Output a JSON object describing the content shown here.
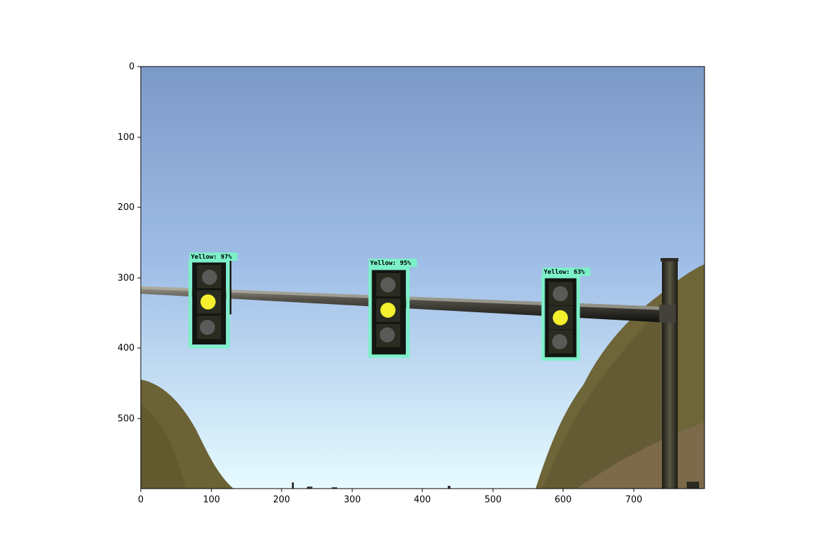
{
  "figure": {
    "x_ticks": [
      "0",
      "100",
      "200",
      "300",
      "400",
      "500",
      "600",
      "700"
    ],
    "y_ticks": [
      "0",
      "100",
      "200",
      "300",
      "400",
      "500"
    ]
  },
  "scene": {
    "sky_colors": {
      "top": "#7c9ac6",
      "bottom": "#e6fbff"
    },
    "hill_color": "#6b6236",
    "pole_color": "#3b372a",
    "arm_color": "#2a2a22",
    "box_color": "#7cf0c8"
  },
  "detections": [
    {
      "label": "Yellow: 97%",
      "class": "Yellow",
      "score": 97
    },
    {
      "label": "Yellow: 95%",
      "class": "Yellow",
      "score": 95
    },
    {
      "label": "Yellow: 63%",
      "class": "Yellow",
      "score": 63
    }
  ]
}
